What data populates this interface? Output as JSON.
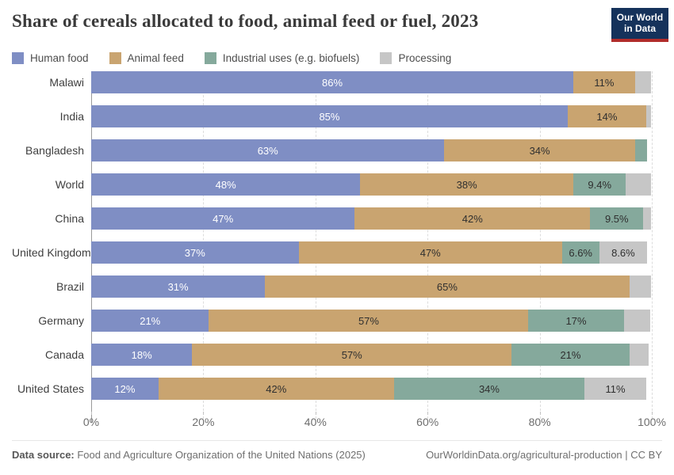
{
  "title": "Share of cereals allocated to food, animal feed or fuel, 2023",
  "logo": {
    "line1": "Our World",
    "line2": "in Data",
    "bg_color": "#15325b",
    "accent_color": "#b22d2b"
  },
  "legend": [
    {
      "label": "Human food",
      "color": "#7f8ec4"
    },
    {
      "label": "Animal feed",
      "color": "#c9a470"
    },
    {
      "label": "Industrial uses (e.g. biofuels)",
      "color": "#85a99c"
    },
    {
      "label": "Processing",
      "color": "#c6c6c6"
    }
  ],
  "chart_data": {
    "type": "bar",
    "stacked": true,
    "orientation": "horizontal",
    "title": "Share of cereals allocated to food, animal feed or fuel, 2023",
    "categories": [
      "Malawi",
      "India",
      "Bangladesh",
      "World",
      "China",
      "United Kingdom",
      "Brazil",
      "Germany",
      "Canada",
      "United States"
    ],
    "series": [
      {
        "name": "Human food",
        "slug": "human-food",
        "color": "#7f8ec4",
        "values": [
          86,
          85,
          63,
          48,
          47,
          37,
          31,
          21,
          18,
          12
        ],
        "labels": [
          "86%",
          "85%",
          "63%",
          "48%",
          "47%",
          "37%",
          "31%",
          "21%",
          "18%",
          "12%"
        ]
      },
      {
        "name": "Animal feed",
        "slug": "animal-feed",
        "color": "#c9a470",
        "values": [
          11,
          14,
          34,
          38,
          42,
          47,
          65,
          57,
          57,
          42
        ],
        "labels": [
          "11%",
          "14%",
          "34%",
          "38%",
          "42%",
          "47%",
          "65%",
          "57%",
          "57%",
          "42%"
        ]
      },
      {
        "name": "Industrial uses (e.g. biofuels)",
        "slug": "industrial-uses",
        "color": "#85a99c",
        "values": [
          0,
          0,
          2.2,
          9.4,
          9.5,
          6.6,
          0,
          17,
          21,
          34
        ],
        "labels": [
          "",
          "",
          "",
          "9.4%",
          "9.5%",
          "6.6%",
          "",
          "17%",
          "21%",
          "34%"
        ]
      },
      {
        "name": "Processing",
        "slug": "processing",
        "color": "#c6c6c6",
        "values": [
          2.9,
          0.9,
          0,
          4.4,
          1.4,
          8.6,
          3.8,
          4.7,
          3.4,
          11
        ],
        "labels": [
          "",
          "",
          "",
          "",
          "",
          "8.6%",
          "",
          "",
          "",
          "11%"
        ]
      }
    ],
    "xlim": [
      0,
      100
    ],
    "xticks": [
      0,
      20,
      40,
      60,
      80,
      100
    ],
    "xtick_labels": [
      "0%",
      "20%",
      "40%",
      "60%",
      "80%",
      "100%"
    ],
    "grid": "dashed-vertical",
    "legend_position": "top"
  },
  "footer": {
    "source_label": "Data source:",
    "source_text": " Food and Agriculture Organization of the United Nations (2025)",
    "credit": "OurWorldinData.org/agricultural-production | CC BY"
  }
}
